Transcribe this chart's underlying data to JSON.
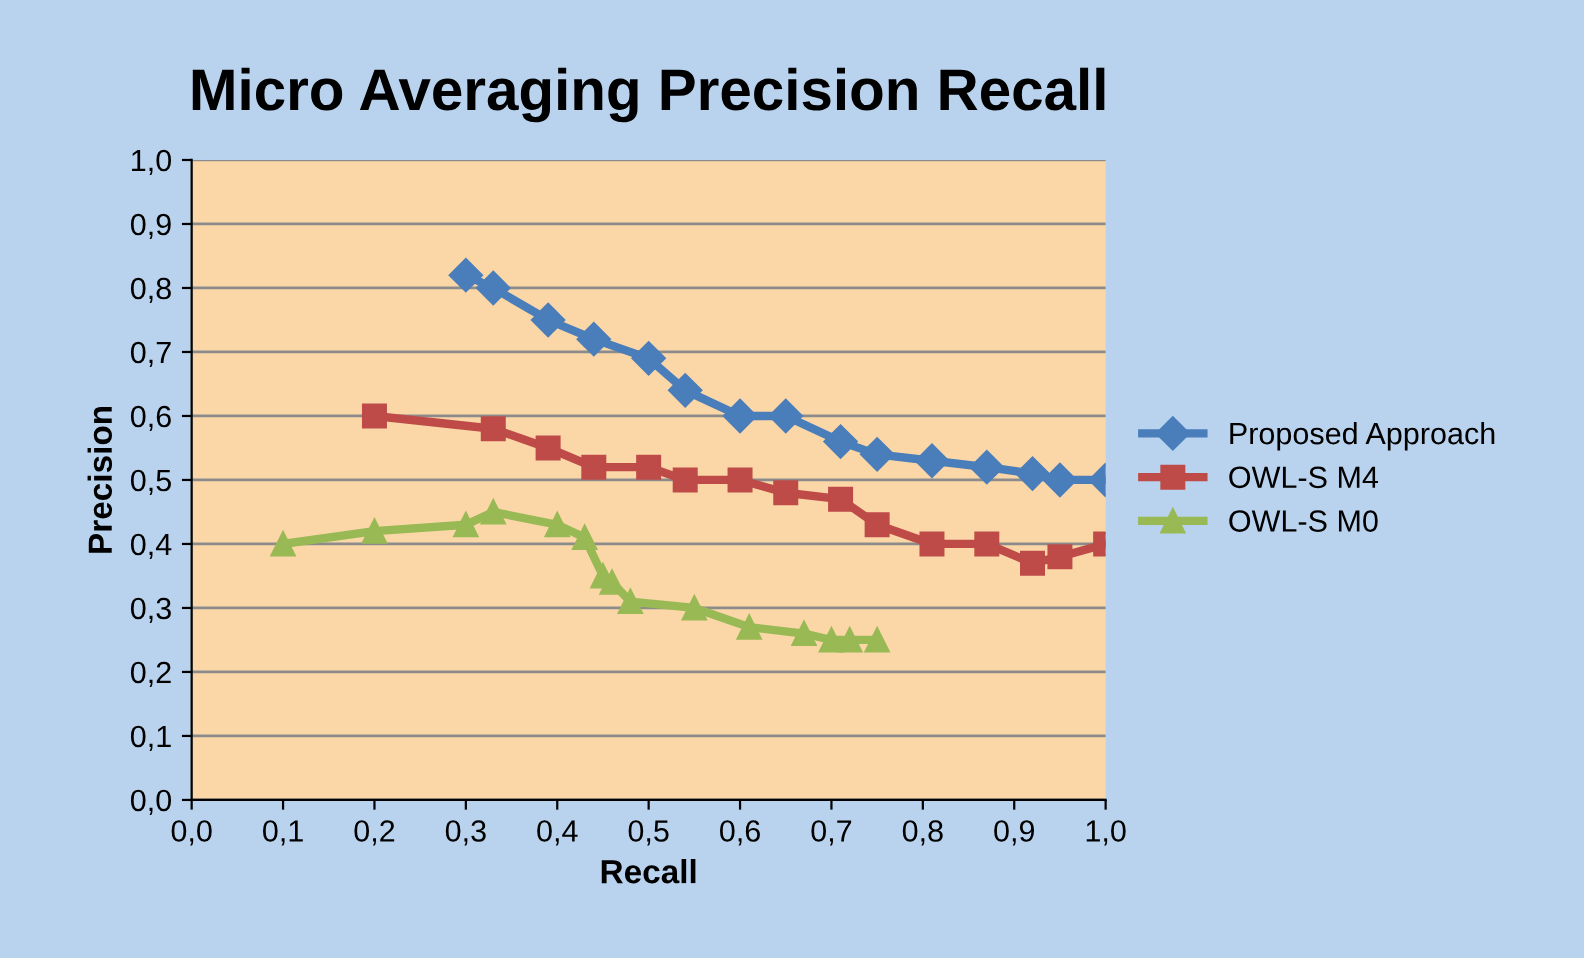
{
  "chart_data": {
    "type": "line",
    "title": "Micro Averaging Precision Recall",
    "xlabel": "Recall",
    "ylabel": "Precision",
    "xlim": [
      0,
      1
    ],
    "ylim": [
      0,
      1
    ],
    "xticks": [
      {
        "value": 0,
        "label": "0,0"
      },
      {
        "value": 0.1,
        "label": "0,1"
      },
      {
        "value": 0.2,
        "label": "0,2"
      },
      {
        "value": 0.3,
        "label": "0,3"
      },
      {
        "value": 0.4,
        "label": "0,4"
      },
      {
        "value": 0.5,
        "label": "0,5"
      },
      {
        "value": 0.6,
        "label": "0,6"
      },
      {
        "value": 0.7,
        "label": "0,7"
      },
      {
        "value": 0.8,
        "label": "0,8"
      },
      {
        "value": 0.9,
        "label": "0,9"
      },
      {
        "value": 1,
        "label": "1,0"
      }
    ],
    "yticks": [
      {
        "value": 0,
        "label": "0,0"
      },
      {
        "value": 0.1,
        "label": "0,1"
      },
      {
        "value": 0.2,
        "label": "0,2"
      },
      {
        "value": 0.3,
        "label": "0,3"
      },
      {
        "value": 0.4,
        "label": "0,4"
      },
      {
        "value": 0.5,
        "label": "0,5"
      },
      {
        "value": 0.6,
        "label": "0,6"
      },
      {
        "value": 0.7,
        "label": "0,7"
      },
      {
        "value": 0.8,
        "label": "0,8"
      },
      {
        "value": 0.9,
        "label": "0,9"
      },
      {
        "value": 1,
        "label": "1,0"
      }
    ],
    "grid": "y",
    "legend": "right",
    "series": [
      {
        "name": "Proposed Approach",
        "color": "#4a7ebb",
        "marker": "diamond",
        "x": [
          0.3,
          0.33,
          0.39,
          0.44,
          0.5,
          0.54,
          0.6,
          0.65,
          0.71,
          0.75,
          0.81,
          0.87,
          0.92,
          0.95,
          1.0
        ],
        "values": [
          0.82,
          0.8,
          0.75,
          0.72,
          0.69,
          0.64,
          0.6,
          0.6,
          0.56,
          0.54,
          0.53,
          0.52,
          0.51,
          0.5,
          0.5
        ]
      },
      {
        "name": "OWL-S M4",
        "color": "#be4b48",
        "marker": "square",
        "x": [
          0.2,
          0.33,
          0.39,
          0.44,
          0.5,
          0.54,
          0.6,
          0.65,
          0.71,
          0.75,
          0.81,
          0.87,
          0.92,
          0.95,
          1.0
        ],
        "values": [
          0.6,
          0.58,
          0.55,
          0.52,
          0.52,
          0.5,
          0.5,
          0.48,
          0.47,
          0.43,
          0.4,
          0.4,
          0.37,
          0.38,
          0.4
        ]
      },
      {
        "name": "OWL-S M0",
        "color": "#98b954",
        "marker": "triangle",
        "x": [
          0.1,
          0.2,
          0.3,
          0.33,
          0.4,
          0.43,
          0.45,
          0.46,
          0.48,
          0.55,
          0.61,
          0.67,
          0.7,
          0.72,
          0.75
        ],
        "values": [
          0.4,
          0.42,
          0.43,
          0.45,
          0.43,
          0.41,
          0.35,
          0.34,
          0.31,
          0.3,
          0.27,
          0.26,
          0.25,
          0.25,
          0.25
        ]
      }
    ]
  }
}
